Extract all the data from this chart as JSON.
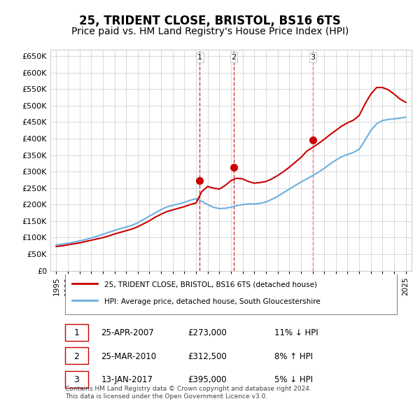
{
  "title": "25, TRIDENT CLOSE, BRISTOL, BS16 6TS",
  "subtitle": "Price paid vs. HM Land Registry's House Price Index (HPI)",
  "title_fontsize": 12,
  "subtitle_fontsize": 10,
  "hpi_color": "#6ab0e0",
  "price_color": "#cc0000",
  "marker_color": "#cc0000",
  "background_color": "#ffffff",
  "grid_color": "#cccccc",
  "ylim": [
    0,
    670000
  ],
  "yticks": [
    0,
    50000,
    100000,
    150000,
    200000,
    250000,
    300000,
    350000,
    400000,
    450000,
    500000,
    550000,
    600000,
    650000
  ],
  "ytick_labels": [
    "£0",
    "£50K",
    "£100K",
    "£150K",
    "£200K",
    "£250K",
    "£300K",
    "£350K",
    "£400K",
    "£450K",
    "£500K",
    "£550K",
    "£600K",
    "£650K"
  ],
  "xticks": [
    1995,
    1996,
    1997,
    1998,
    1999,
    2000,
    2001,
    2002,
    2003,
    2004,
    2005,
    2006,
    2007,
    2008,
    2009,
    2010,
    2011,
    2012,
    2013,
    2014,
    2015,
    2016,
    2017,
    2018,
    2019,
    2020,
    2021,
    2022,
    2023,
    2024,
    2025
  ],
  "xlim": [
    1994.5,
    2025.5
  ],
  "sale_dates": [
    2007.32,
    2010.23,
    2017.04
  ],
  "sale_prices": [
    273000,
    312500,
    395000
  ],
  "sale_labels": [
    "1",
    "2",
    "3"
  ],
  "vline_color": "#cc0000",
  "vline_style": "--",
  "legend_label_price": "25, TRIDENT CLOSE, BRISTOL, BS16 6TS (detached house)",
  "legend_label_hpi": "HPI: Average price, detached house, South Gloucestershire",
  "table_entries": [
    {
      "num": "1",
      "date": "25-APR-2007",
      "price": "£273,000",
      "hpi": "11% ↓ HPI"
    },
    {
      "num": "2",
      "date": "25-MAR-2010",
      "price": "£312,500",
      "hpi": "8% ↑ HPI"
    },
    {
      "num": "3",
      "date": "13-JAN-2017",
      "price": "£395,000",
      "hpi": "5% ↓ HPI"
    }
  ],
  "footnote": "Contains HM Land Registry data © Crown copyright and database right 2024.\nThis data is licensed under the Open Government Licence v3.0.",
  "hpi_x": [
    1995,
    1995.5,
    1996,
    1996.5,
    1997,
    1997.5,
    1998,
    1998.5,
    1999,
    1999.5,
    2000,
    2000.5,
    2001,
    2001.5,
    2002,
    2002.5,
    2003,
    2003.5,
    2004,
    2004.5,
    2005,
    2005.5,
    2006,
    2006.5,
    2007,
    2007.5,
    2008,
    2008.5,
    2009,
    2009.5,
    2010,
    2010.5,
    2011,
    2011.5,
    2012,
    2012.5,
    2013,
    2013.5,
    2014,
    2014.5,
    2015,
    2015.5,
    2016,
    2016.5,
    2017,
    2017.5,
    2018,
    2018.5,
    2019,
    2019.5,
    2020,
    2020.5,
    2021,
    2021.5,
    2022,
    2022.5,
    2023,
    2023.5,
    2024,
    2024.5,
    2025
  ],
  "hpi_y": [
    78000,
    80000,
    83000,
    86000,
    90000,
    94000,
    99000,
    104000,
    110000,
    116000,
    122000,
    127000,
    132000,
    137000,
    145000,
    155000,
    165000,
    175000,
    185000,
    193000,
    198000,
    202000,
    207000,
    213000,
    218000,
    210000,
    200000,
    192000,
    188000,
    189000,
    192000,
    197000,
    200000,
    202000,
    202000,
    204000,
    208000,
    216000,
    225000,
    236000,
    247000,
    258000,
    268000,
    278000,
    288000,
    298000,
    310000,
    323000,
    335000,
    345000,
    352000,
    358000,
    368000,
    395000,
    425000,
    445000,
    455000,
    458000,
    460000,
    462000,
    465000
  ],
  "price_x": [
    1995,
    1995.5,
    1996,
    1996.5,
    1997,
    1997.5,
    1998,
    1998.5,
    1999,
    1999.5,
    2000,
    2000.5,
    2001,
    2001.5,
    2002,
    2002.5,
    2003,
    2003.5,
    2004,
    2004.5,
    2005,
    2005.5,
    2006,
    2006.5,
    2007,
    2007.5,
    2008,
    2008.5,
    2009,
    2009.5,
    2010,
    2010.5,
    2011,
    2011.5,
    2012,
    2012.5,
    2013,
    2013.5,
    2014,
    2014.5,
    2015,
    2015.5,
    2016,
    2016.5,
    2017,
    2017.5,
    2018,
    2018.5,
    2019,
    2019.5,
    2020,
    2020.5,
    2021,
    2021.5,
    2022,
    2022.5,
    2023,
    2023.5,
    2024,
    2024.5,
    2025
  ],
  "price_y": [
    73000,
    75000,
    78000,
    81000,
    84000,
    88000,
    92000,
    96000,
    100000,
    105000,
    111000,
    116000,
    121000,
    126000,
    133000,
    142000,
    151000,
    162000,
    171000,
    179000,
    184000,
    189000,
    194000,
    200000,
    205000,
    240000,
    255000,
    250000,
    247000,
    258000,
    273000,
    280000,
    278000,
    270000,
    265000,
    267000,
    270000,
    278000,
    288000,
    300000,
    313000,
    328000,
    343000,
    362000,
    373000,
    385000,
    398000,
    412000,
    425000,
    438000,
    448000,
    456000,
    470000,
    505000,
    535000,
    555000,
    555000,
    548000,
    535000,
    520000,
    510000
  ]
}
